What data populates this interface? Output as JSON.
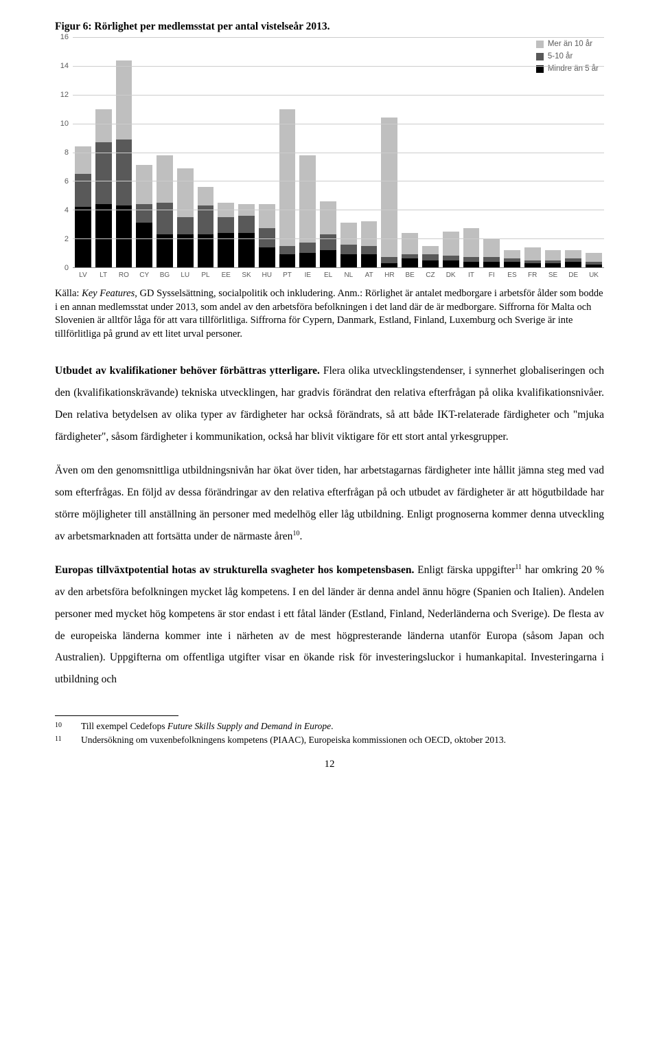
{
  "figure": {
    "title": "Figur 6: Rörlighet per medlemsstat per antal vistelseår 2013.",
    "ymax": 16,
    "ytick_step": 2,
    "y_ticks": [
      0,
      2,
      4,
      6,
      8,
      10,
      12,
      14,
      16
    ],
    "grid_color": "#cccccc",
    "axis_color": "#888888",
    "label_fontsize": 11,
    "series": [
      {
        "key": "s3",
        "label": "Mer än 10 år",
        "color": "#bfbfbf"
      },
      {
        "key": "s2",
        "label": "5-10 år",
        "color": "#595959"
      },
      {
        "key": "s1",
        "label": "Mindre än 5 år",
        "color": "#000000"
      }
    ],
    "categories": [
      "LV",
      "LT",
      "RO",
      "CY",
      "BG",
      "LU",
      "PL",
      "EE",
      "SK",
      "HU",
      "PT",
      "IE",
      "EL",
      "NL",
      "AT",
      "HR",
      "BE",
      "CZ",
      "DK",
      "IT",
      "FI",
      "ES",
      "FR",
      "SE",
      "DE",
      "UK"
    ],
    "data": {
      "LV": {
        "s1": 4.2,
        "s2": 2.3,
        "s3": 1.9
      },
      "LT": {
        "s1": 4.4,
        "s2": 4.3,
        "s3": 2.3
      },
      "RO": {
        "s1": 4.3,
        "s2": 4.6,
        "s3": 5.5
      },
      "CY": {
        "s1": 3.1,
        "s2": 1.3,
        "s3": 2.7
      },
      "BG": {
        "s1": 2.3,
        "s2": 2.2,
        "s3": 3.3
      },
      "LU": {
        "s1": 2.3,
        "s2": 1.2,
        "s3": 3.4
      },
      "PL": {
        "s1": 2.3,
        "s2": 2.0,
        "s3": 1.3
      },
      "EE": {
        "s1": 2.4,
        "s2": 1.1,
        "s3": 1.0
      },
      "SK": {
        "s1": 2.4,
        "s2": 1.2,
        "s3": 0.8
      },
      "HU": {
        "s1": 1.4,
        "s2": 1.3,
        "s3": 1.7
      },
      "PT": {
        "s1": 0.9,
        "s2": 0.6,
        "s3": 9.5
      },
      "IE": {
        "s1": 1.0,
        "s2": 0.7,
        "s3": 6.1
      },
      "EL": {
        "s1": 1.2,
        "s2": 1.1,
        "s3": 2.3
      },
      "NL": {
        "s1": 0.9,
        "s2": 0.7,
        "s3": 1.5
      },
      "AT": {
        "s1": 0.9,
        "s2": 0.6,
        "s3": 1.7
      },
      "HR": {
        "s1": 0.3,
        "s2": 0.4,
        "s3": 9.7
      },
      "BE": {
        "s1": 0.6,
        "s2": 0.3,
        "s3": 1.5
      },
      "CZ": {
        "s1": 0.5,
        "s2": 0.4,
        "s3": 0.6
      },
      "DK": {
        "s1": 0.5,
        "s2": 0.3,
        "s3": 1.7
      },
      "IT": {
        "s1": 0.4,
        "s2": 0.3,
        "s3": 2.0
      },
      "FI": {
        "s1": 0.4,
        "s2": 0.3,
        "s3": 1.3
      },
      "ES": {
        "s1": 0.4,
        "s2": 0.2,
        "s3": 0.6
      },
      "FR": {
        "s1": 0.3,
        "s2": 0.2,
        "s3": 0.9
      },
      "SE": {
        "s1": 0.3,
        "s2": 0.2,
        "s3": 0.7
      },
      "DE": {
        "s1": 0.4,
        "s2": 0.2,
        "s3": 0.6
      },
      "UK": {
        "s1": 0.2,
        "s2": 0.2,
        "s3": 0.6
      }
    }
  },
  "source_note": {
    "prefix_label": "Källa: ",
    "source_italic": "Key Features",
    "source_rest": ", GD Sysselsättning, socialpolitik och inkludering. Anm.: Rörlighet är antalet medborgare i arbetsför ålder som bodde i en annan medlemsstat under 2013, som andel av den arbetsföra befolkningen i det land där de är medborgare. Siffrorna för Malta och Slovenien är alltför låga för att vara tillförlitliga. Siffrorna för Cypern, Danmark, Estland, Finland, Luxemburg och Sverige är inte tillförlitliga på grund av ett litet urval personer."
  },
  "para1": {
    "bold": "Utbudet av kvalifikationer behöver förbättras ytterligare.",
    "rest": " Flera olika utvecklingstendenser, i synnerhet globaliseringen och den (kvalifikationskrävande) tekniska utvecklingen, har gradvis förändrat den relativa efterfrågan på olika kvalifikationsnivåer. Den relativa betydelsen av olika typer av färdigheter har också förändrats, så att både IKT-relaterade färdigheter och \"mjuka färdigheter\", såsom färdigheter i kommunikation, också har blivit viktigare för ett stort antal yrkesgrupper."
  },
  "para2": "Även om den genomsnittliga utbildningsnivån har ökat över tiden, har arbetstagarnas färdigheter inte hållit jämna steg med vad som efterfrågas. En följd av dessa förändringar av den relativa efterfrågan på och utbudet av färdigheter är att högutbildade har större möjligheter till anställning än personer med medelhög eller låg utbildning. Enligt prognoserna kommer denna utveckling av arbetsmarknaden att fortsätta under de närmaste åren",
  "para2_sup": "10",
  "para2_end": ".",
  "para3": {
    "bold": "Europas tillväxtpotential hotas av strukturella svagheter hos kompetensbasen.",
    "part1": " Enligt färska uppgifter",
    "sup": "11",
    "part2": " har omkring 20 % av den arbetsföra befolkningen mycket låg kompetens. I en del länder är denna andel ännu högre (Spanien och Italien). Andelen personer med mycket hög kompetens är stor endast i ett fåtal länder (Estland, Finland, Nederländerna och Sverige). De flesta av de europeiska länderna kommer inte i närheten av de mest högpresterande länderna utanför Europa (såsom Japan och Australien). Uppgifterna om offentliga utgifter visar en ökande risk för investeringsluckor i humankapital. Investeringarna i utbildning och"
  },
  "footnotes": [
    {
      "num": "10",
      "pre": "Till exempel Cedefops ",
      "italic": "Future Skills Supply and Demand in Europe",
      "post": "."
    },
    {
      "num": "11",
      "pre": "Undersökning om vuxenbefolkningens kompetens (PIAAC), Europeiska kommissionen och OECD, oktober 2013.",
      "italic": "",
      "post": ""
    }
  ],
  "page_number": "12"
}
